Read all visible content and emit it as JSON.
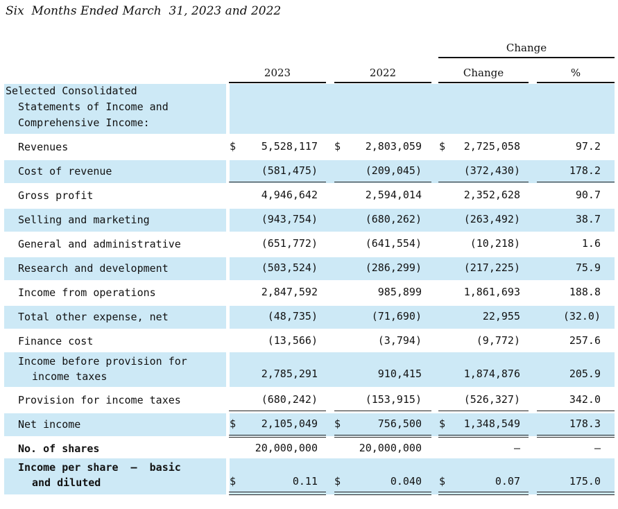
{
  "title": "Six  Months Ended March  31, 2023 and 2022",
  "header": {
    "group_label": "Change",
    "columns": [
      "2023",
      "2022",
      "Change",
      "%"
    ]
  },
  "section_label": "Selected Consolidated",
  "section_label_line2": "Statements of Income and",
  "section_label_line3": "Comprehensive Income:",
  "rows": [
    {
      "label": "Revenues",
      "c2023": "5,528,117",
      "c2022": "2,803,059",
      "change": "2,725,058",
      "pct": "97.2"
    },
    {
      "label": "Cost of revenue",
      "c2023": "(581,475)",
      "c2022": "(209,045)",
      "change": "(372,430)",
      "pct": "178.2"
    },
    {
      "label": "Gross profit",
      "c2023": "4,946,642",
      "c2022": "2,594,014",
      "change": "2,352,628",
      "pct": "90.7"
    },
    {
      "label": "Selling and marketing",
      "c2023": "(943,754)",
      "c2022": "(680,262)",
      "change": "(263,492)",
      "pct": "38.7"
    },
    {
      "label": "General and administrative",
      "c2023": "(651,772)",
      "c2022": "(641,554)",
      "change": "(10,218)",
      "pct": "1.6"
    },
    {
      "label": "Research and development",
      "c2023": "(503,524)",
      "c2022": "(286,299)",
      "change": "(217,225)",
      "pct": "75.9"
    },
    {
      "label": "Income from operations",
      "c2023": "2,847,592",
      "c2022": "985,899",
      "change": "1,861,693",
      "pct": "188.8"
    },
    {
      "label": "Total other expense, net",
      "c2023": "(48,735)",
      "c2022": "(71,690)",
      "change": "22,955",
      "pct": "(32.0)"
    },
    {
      "label": "Finance cost",
      "c2023": "(13,566)",
      "c2022": "(3,794)",
      "change": "(9,772)",
      "pct": "257.6"
    },
    {
      "label": "Income before provision for",
      "label2": "income taxes",
      "c2023": "2,785,291",
      "c2022": "910,415",
      "change": "1,874,876",
      "pct": "205.9"
    },
    {
      "label": "Provision for income taxes",
      "c2023": "(680,242)",
      "c2022": "(153,915)",
      "change": "(526,327)",
      "pct": "342.0"
    },
    {
      "label": "Net income",
      "c2023": "2,105,049",
      "c2022": "756,500",
      "change": "1,348,549",
      "pct": "178.3"
    },
    {
      "label": "No. of shares",
      "c2023": "20,000,000",
      "c2022": "20,000,000",
      "change": "—",
      "pct": "—"
    },
    {
      "label": "Income per share  –  basic",
      "label2": "and diluted",
      "c2023": "0.11",
      "c2022": "0.040",
      "change": "0.07",
      "pct": "175.0"
    }
  ],
  "currency_symbol": "$"
}
